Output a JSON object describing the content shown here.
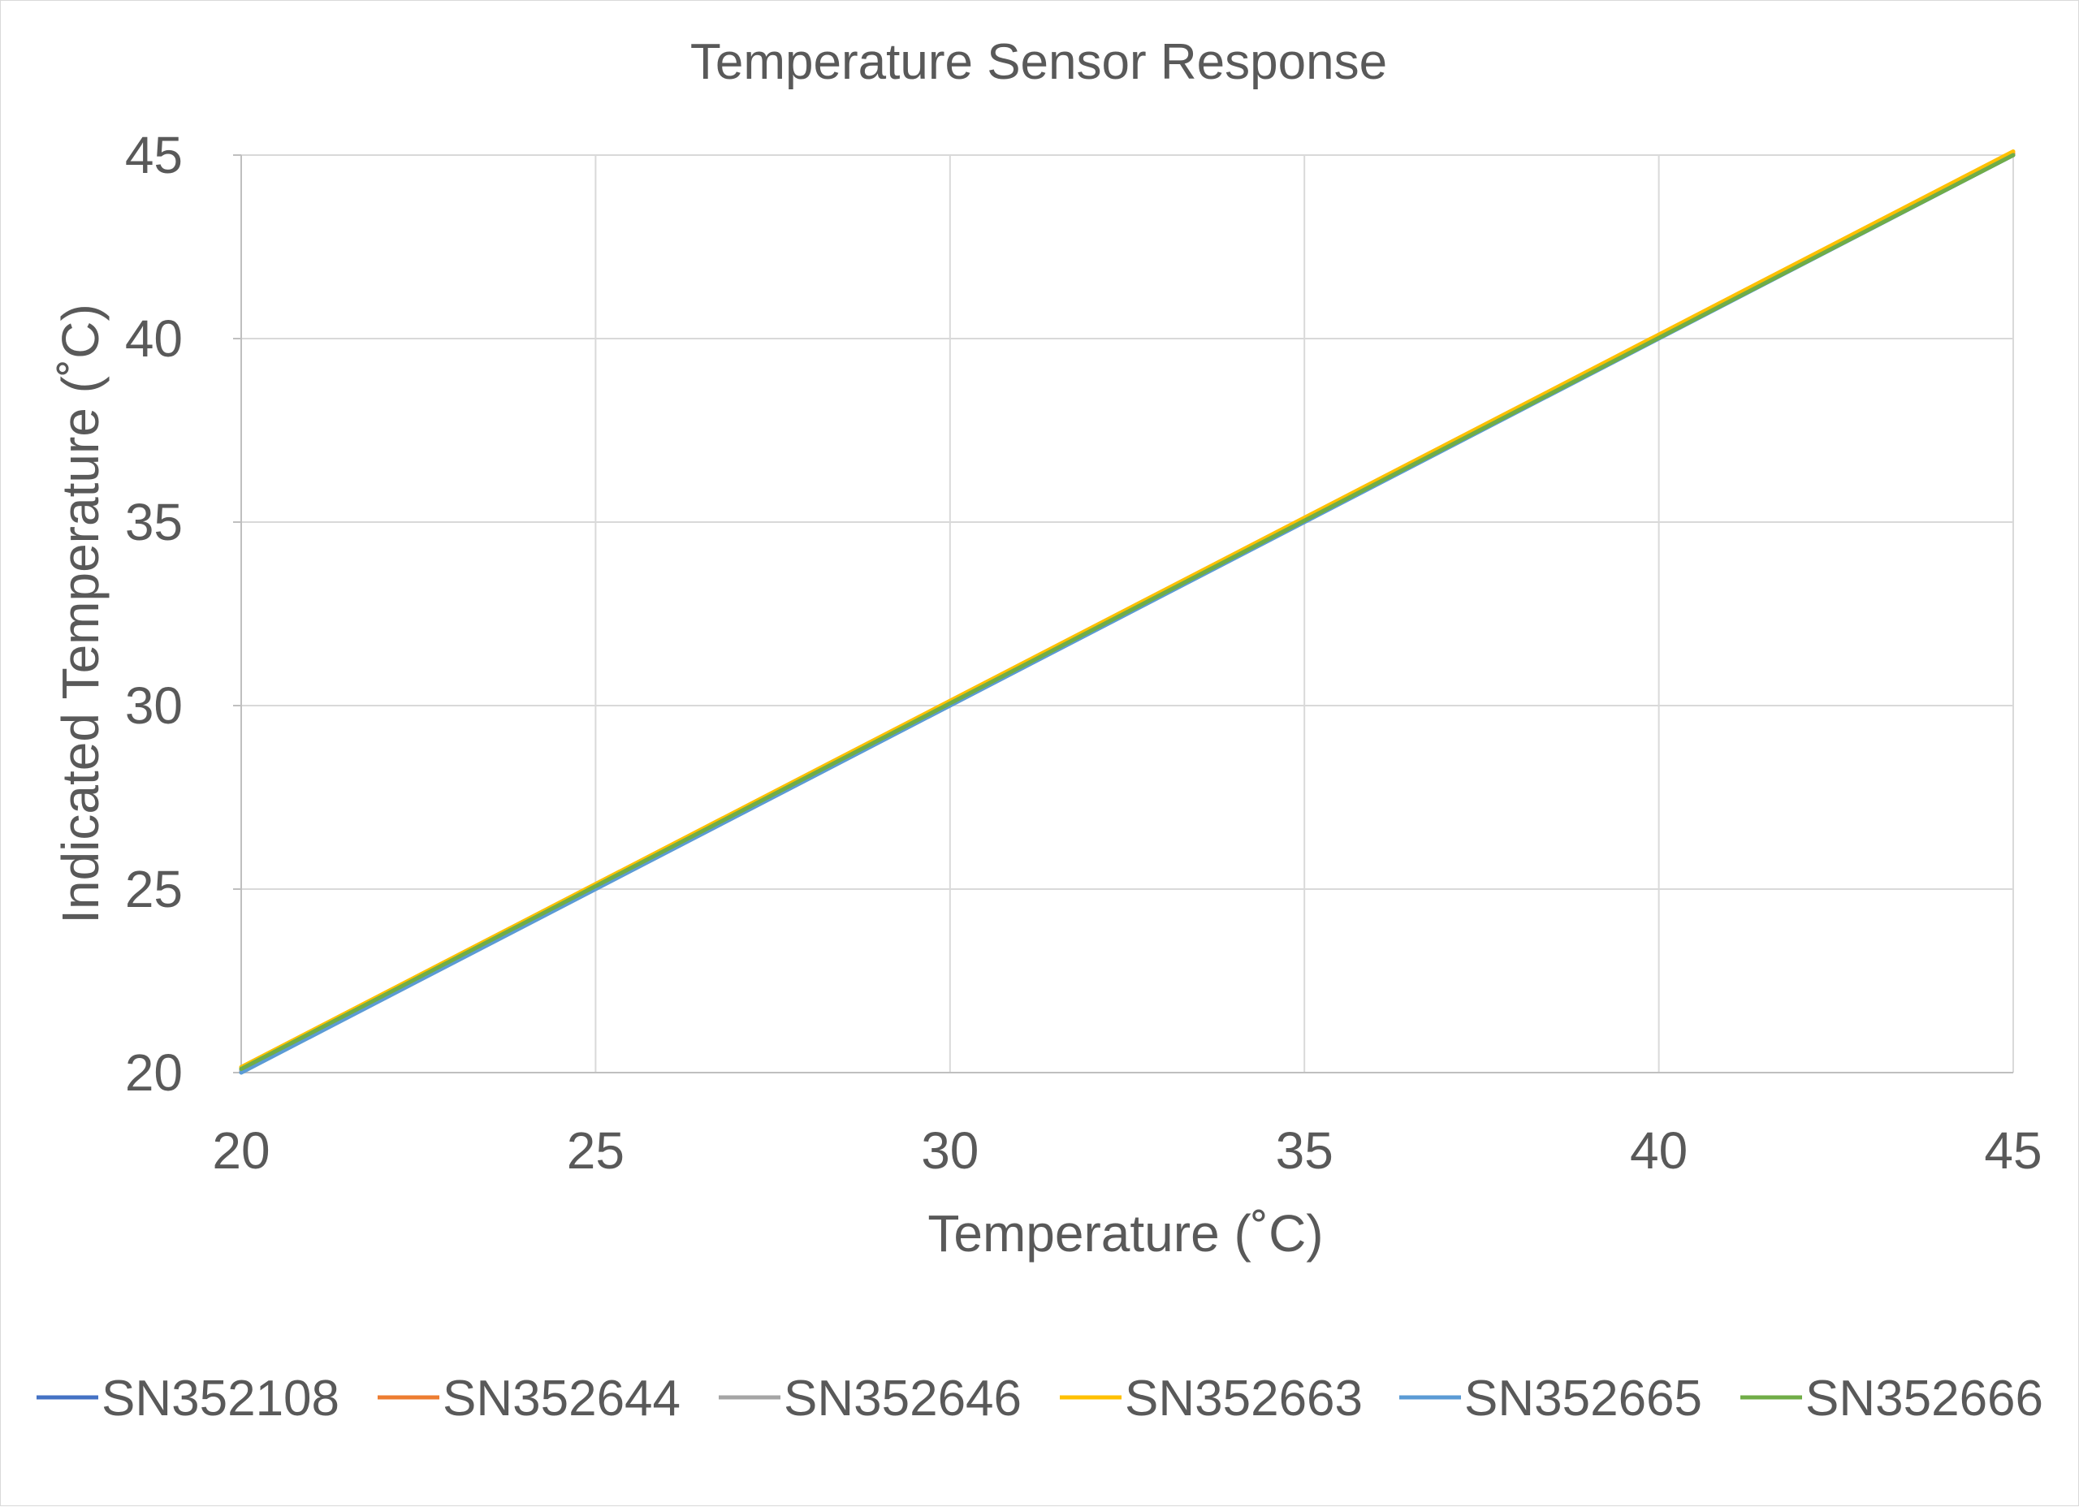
{
  "chart_data": {
    "type": "line",
    "title": "Temperature Sensor Response",
    "xlabel": "Temperature (˚C)",
    "ylabel": "Indicated Temperature (˚C)",
    "xlim": [
      20,
      45
    ],
    "ylim": [
      20,
      45
    ],
    "x_ticks": [
      "20",
      "25",
      "30",
      "35",
      "40",
      "45"
    ],
    "y_ticks": [
      "20",
      "25",
      "30",
      "35",
      "40",
      "45"
    ],
    "grid": true,
    "legend_position": "bottom",
    "series": [
      {
        "name": "SN352108",
        "color": "#4472C4",
        "x": [
          20,
          45
        ],
        "y": [
          20.05,
          45.0
        ]
      },
      {
        "name": "SN352644",
        "color": "#ED7D31",
        "x": [
          20,
          45
        ],
        "y": [
          20.1,
          45.05
        ]
      },
      {
        "name": "SN352646",
        "color": "#A5A5A5",
        "x": [
          20,
          45
        ],
        "y": [
          20.05,
          45.0
        ]
      },
      {
        "name": "SN352663",
        "color": "#FFC000",
        "x": [
          20,
          45
        ],
        "y": [
          20.15,
          45.1
        ]
      },
      {
        "name": "SN352665",
        "color": "#5B9BD5",
        "x": [
          20,
          45
        ],
        "y": [
          20.0,
          45.0
        ]
      },
      {
        "name": "SN352666",
        "color": "#70AD47",
        "x": [
          20,
          45
        ],
        "y": [
          20.1,
          45.0
        ]
      }
    ]
  }
}
